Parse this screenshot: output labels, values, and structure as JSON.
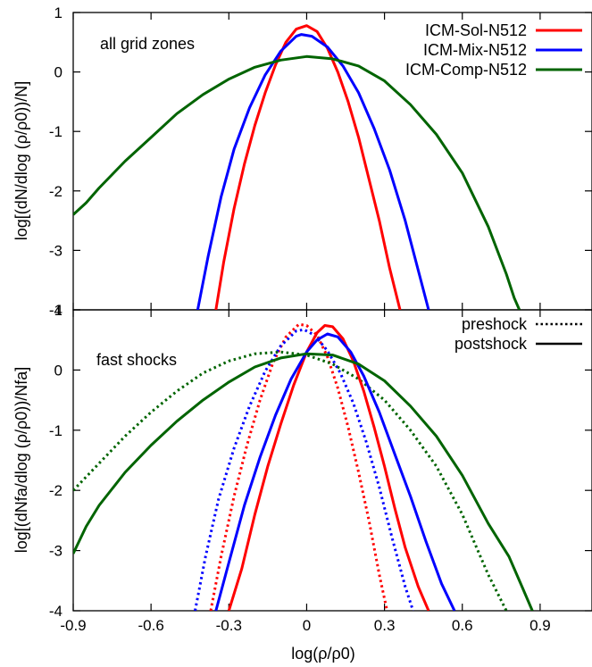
{
  "chart_data": [
    {
      "type": "line",
      "panel": "top",
      "annotation": "all grid zones",
      "ylabel": "log[(dN/dlog (ρ/ρ0))/N]",
      "xlim": [
        -0.9,
        1.1
      ],
      "ylim": [
        -4,
        1
      ],
      "yticks": [
        "-4",
        "-3",
        "-2",
        "-1",
        "0",
        "1"
      ],
      "legend": {
        "placement": "top-right"
      },
      "series": [
        {
          "name": "ICM-Sol-N512",
          "color": "#ff0000",
          "style": "solid",
          "x": [
            -0.35,
            -0.32,
            -0.28,
            -0.24,
            -0.2,
            -0.16,
            -0.12,
            -0.08,
            -0.04,
            0.0,
            0.04,
            0.08,
            0.12,
            0.16,
            0.2,
            0.24,
            0.28,
            0.32,
            0.36
          ],
          "y": [
            -4,
            -3.2,
            -2.3,
            -1.55,
            -0.9,
            -0.35,
            0.12,
            0.5,
            0.72,
            0.78,
            0.68,
            0.4,
            0.0,
            -0.5,
            -1.1,
            -1.8,
            -2.5,
            -3.3,
            -4
          ]
        },
        {
          "name": "ICM-Mix-N512",
          "color": "#0000ff",
          "style": "solid",
          "x": [
            -0.42,
            -0.38,
            -0.33,
            -0.28,
            -0.22,
            -0.16,
            -0.1,
            -0.04,
            -0.02,
            0.02,
            0.08,
            0.14,
            0.2,
            0.26,
            0.32,
            0.38,
            0.44,
            0.47
          ],
          "y": [
            -4,
            -3.1,
            -2.1,
            -1.3,
            -0.6,
            -0.05,
            0.35,
            0.6,
            0.63,
            0.6,
            0.42,
            0.1,
            -0.35,
            -0.95,
            -1.65,
            -2.5,
            -3.5,
            -4
          ]
        },
        {
          "name": "ICM-Comp-N512",
          "color": "#006400",
          "style": "solid",
          "x": [
            -0.9,
            -0.85,
            -0.8,
            -0.7,
            -0.6,
            -0.5,
            -0.4,
            -0.3,
            -0.2,
            -0.1,
            0.0,
            0.1,
            0.2,
            0.3,
            0.4,
            0.5,
            0.6,
            0.7,
            0.77,
            0.8,
            0.82
          ],
          "y": [
            -2.4,
            -2.2,
            -1.95,
            -1.5,
            -1.1,
            -0.7,
            -0.38,
            -0.12,
            0.08,
            0.2,
            0.26,
            0.22,
            0.1,
            -0.15,
            -0.55,
            -1.05,
            -1.7,
            -2.6,
            -3.4,
            -3.8,
            -4
          ]
        }
      ]
    },
    {
      "type": "line",
      "panel": "bottom",
      "annotation": "fast shocks",
      "xlabel": "log(ρ/ρ0)",
      "ylabel": "log[(dNfa/dlog (ρ/ρ0))/Nfa]",
      "xlim": [
        -0.9,
        1.1
      ],
      "ylim": [
        -4,
        1
      ],
      "xticks": [
        "-0.9",
        "-0.6",
        "-0.3",
        "0",
        "0.3",
        "0.6",
        "0.9"
      ],
      "yticks": [
        "-4",
        "-3",
        "-2",
        "-1",
        "0",
        "1"
      ],
      "legend": {
        "placement": "top-right",
        "entries": [
          "preshock",
          "postshock"
        ]
      },
      "series": [
        {
          "color": "#ff0000",
          "style": "dotted",
          "x": [
            -0.37,
            -0.33,
            -0.28,
            -0.23,
            -0.18,
            -0.13,
            -0.08,
            -0.03,
            0.0,
            0.04,
            0.08,
            0.12,
            0.16,
            0.2,
            0.24,
            0.28,
            0.31
          ],
          "y": [
            -4,
            -3.1,
            -2.1,
            -1.25,
            -0.5,
            0.12,
            0.55,
            0.76,
            0.74,
            0.58,
            0.22,
            -0.3,
            -0.95,
            -1.7,
            -2.5,
            -3.4,
            -4
          ]
        },
        {
          "color": "#0000ff",
          "style": "dotted",
          "x": [
            -0.43,
            -0.39,
            -0.34,
            -0.28,
            -0.22,
            -0.16,
            -0.1,
            -0.04,
            -0.01,
            0.03,
            0.08,
            0.13,
            0.18,
            0.23,
            0.28,
            0.33,
            0.38,
            0.41
          ],
          "y": [
            -4,
            -3.1,
            -2.15,
            -1.3,
            -0.6,
            -0.02,
            0.4,
            0.65,
            0.67,
            0.58,
            0.32,
            -0.05,
            -0.55,
            -1.2,
            -1.95,
            -2.8,
            -3.6,
            -4
          ]
        },
        {
          "color": "#006400",
          "style": "dotted",
          "x": [
            -0.9,
            -0.8,
            -0.7,
            -0.6,
            -0.5,
            -0.4,
            -0.3,
            -0.2,
            -0.1,
            0.0,
            0.1,
            0.2,
            0.3,
            0.4,
            0.5,
            0.6,
            0.7,
            0.77
          ],
          "y": [
            -2.0,
            -1.55,
            -1.1,
            -0.7,
            -0.35,
            -0.05,
            0.15,
            0.27,
            0.3,
            0.25,
            0.1,
            -0.15,
            -0.5,
            -1.0,
            -1.6,
            -2.4,
            -3.4,
            -4
          ]
        },
        {
          "color": "#ff0000",
          "style": "solid",
          "x": [
            -0.3,
            -0.25,
            -0.2,
            -0.15,
            -0.1,
            -0.05,
            0.0,
            0.04,
            0.07,
            0.1,
            0.14,
            0.18,
            0.22,
            0.26,
            0.3,
            0.34,
            0.38,
            0.43,
            0.47
          ],
          "y": [
            -4,
            -3.3,
            -2.4,
            -1.6,
            -0.9,
            -0.25,
            0.3,
            0.62,
            0.74,
            0.72,
            0.52,
            0.15,
            -0.35,
            -0.95,
            -1.6,
            -2.3,
            -2.95,
            -3.6,
            -4
          ]
        },
        {
          "color": "#0000ff",
          "style": "solid",
          "x": [
            -0.35,
            -0.3,
            -0.24,
            -0.18,
            -0.12,
            -0.06,
            0.0,
            0.04,
            0.08,
            0.12,
            0.17,
            0.22,
            0.28,
            0.34,
            0.4,
            0.46,
            0.52,
            0.57
          ],
          "y": [
            -4,
            -3.2,
            -2.25,
            -1.45,
            -0.75,
            -0.15,
            0.3,
            0.5,
            0.6,
            0.55,
            0.3,
            -0.1,
            -0.7,
            -1.4,
            -2.1,
            -2.85,
            -3.55,
            -4
          ]
        },
        {
          "color": "#006400",
          "style": "solid",
          "x": [
            -0.9,
            -0.85,
            -0.8,
            -0.7,
            -0.6,
            -0.5,
            -0.4,
            -0.3,
            -0.2,
            -0.1,
            0.0,
            0.1,
            0.2,
            0.3,
            0.4,
            0.5,
            0.6,
            0.7,
            0.78,
            0.83,
            0.87
          ],
          "y": [
            -3.05,
            -2.6,
            -2.25,
            -1.7,
            -1.25,
            -0.85,
            -0.5,
            -0.2,
            0.05,
            0.2,
            0.27,
            0.25,
            0.1,
            -0.18,
            -0.6,
            -1.1,
            -1.75,
            -2.55,
            -3.1,
            -3.6,
            -4
          ]
        }
      ]
    }
  ]
}
